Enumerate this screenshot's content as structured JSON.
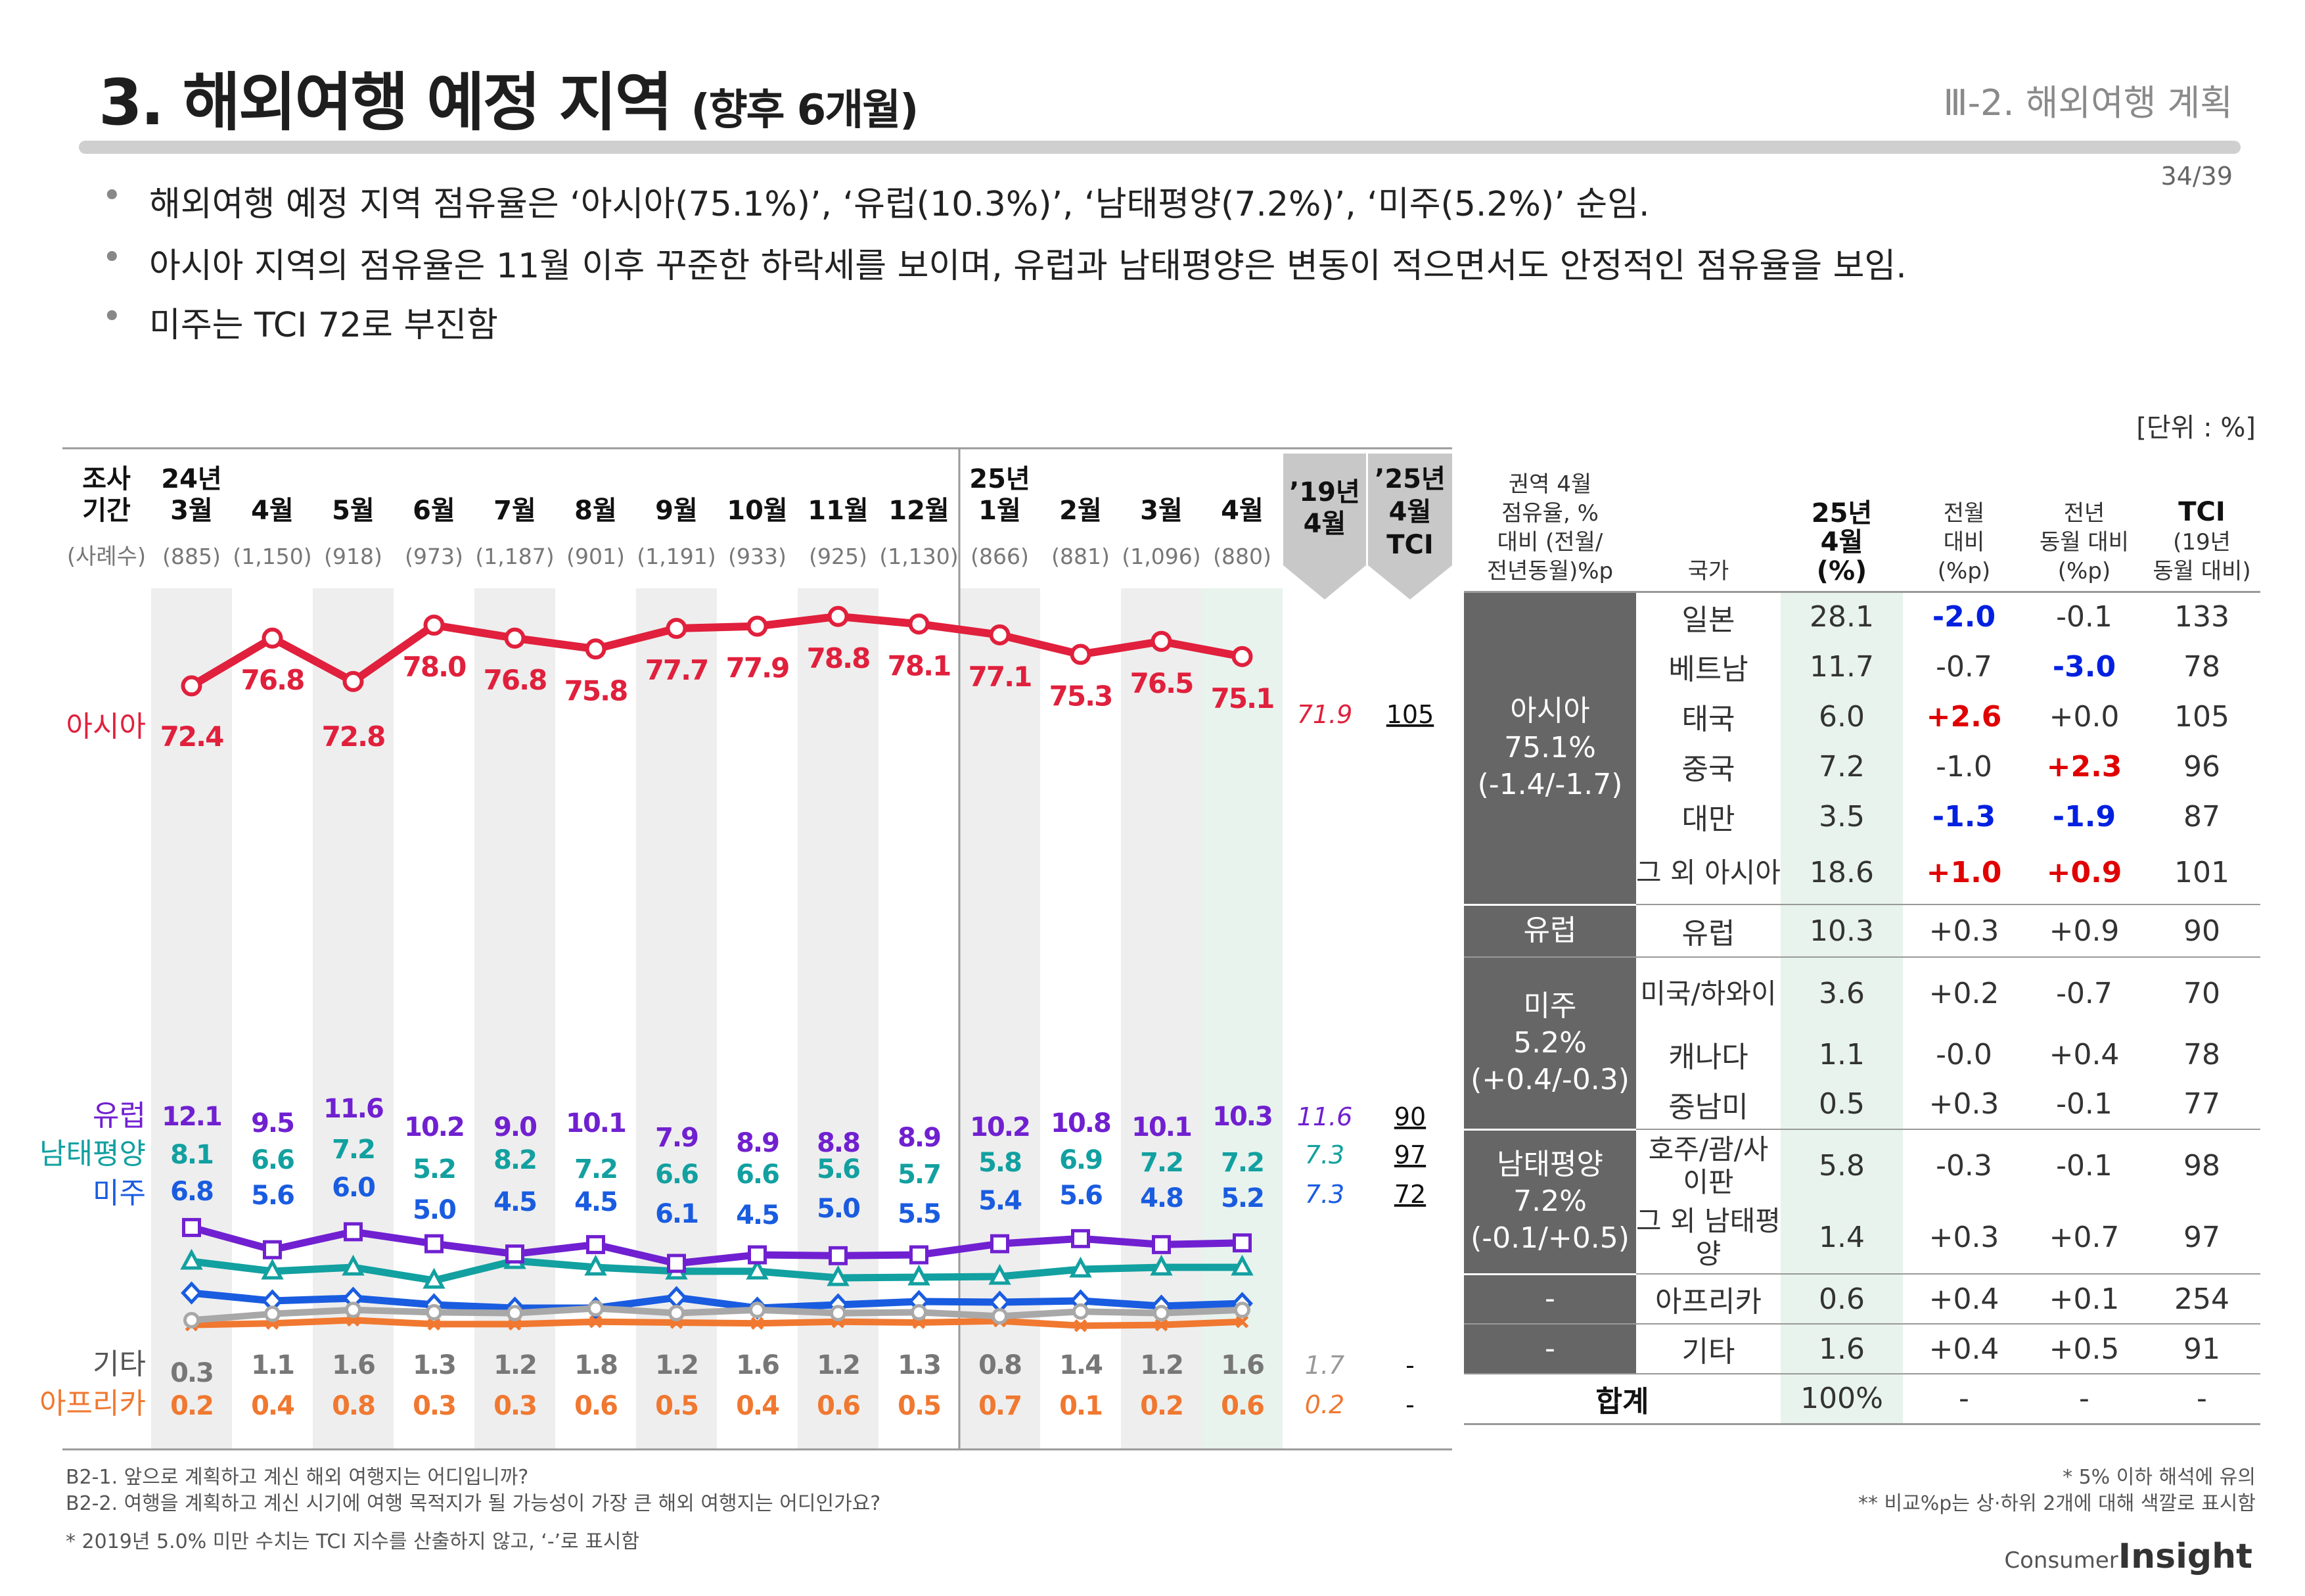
{
  "header": {
    "title": "3. 해외여행 예정 지역",
    "title_sub": "(향후 6개월)",
    "section": "Ⅲ-2. 해외여행 계획",
    "page": "34/39"
  },
  "bullets": [
    "해외여행 예정 지역 점유율은 ‘아시아(75.1%)’, ‘유럽(10.3%)’, ‘남태평양(7.2%)’, ‘미주(5.2%)’ 순임.",
    "아시아 지역의 점유율은 11월 이후 꾸준한 하락세를 보이며, 유럽과 남태평양은 변동이 적으면서도 안정적인 점유율을 보임.",
    "미주는 TCI 72로 부진함"
  ],
  "unit": "[단위 : %]",
  "chart_data": {
    "type": "line",
    "row_label": [
      "조사",
      "기간"
    ],
    "sample_label": "(사례수)",
    "periods": [
      {
        "year": "24년",
        "month": "3월",
        "n": "(885)"
      },
      {
        "year": "",
        "month": "4월",
        "n": "(1,150)"
      },
      {
        "year": "",
        "month": "5월",
        "n": "(918)"
      },
      {
        "year": "",
        "month": "6월",
        "n": "(973)"
      },
      {
        "year": "",
        "month": "7월",
        "n": "(1,187)"
      },
      {
        "year": "",
        "month": "8월",
        "n": "(901)"
      },
      {
        "year": "",
        "month": "9월",
        "n": "(1,191)"
      },
      {
        "year": "",
        "month": "10월",
        "n": "(933)"
      },
      {
        "year": "",
        "month": "11월",
        "n": "(925)"
      },
      {
        "year": "",
        "month": "12월",
        "n": "(1,130)"
      },
      {
        "year": "25년",
        "month": "1월",
        "n": "(866)"
      },
      {
        "year": "",
        "month": "2월",
        "n": "(881)"
      },
      {
        "year": "",
        "month": "3월",
        "n": "(1,096)"
      },
      {
        "year": "",
        "month": "4월",
        "n": "(880)"
      }
    ],
    "ref_col_1": [
      "’19년",
      "4월"
    ],
    "ref_col_2": [
      "’25년",
      "4월",
      "TCI"
    ],
    "series": [
      {
        "name": "아시아",
        "color": "#e0203c",
        "marker": "circle",
        "values": [
          72.4,
          76.8,
          72.8,
          78.0,
          76.8,
          75.8,
          77.7,
          77.9,
          78.8,
          78.1,
          77.1,
          75.3,
          76.5,
          75.1
        ],
        "ref_2019": "71.9",
        "tci": "105"
      },
      {
        "name": "유럽",
        "color": "#7020d0",
        "marker": "square",
        "values": [
          12.1,
          9.5,
          11.6,
          10.2,
          9.0,
          10.1,
          7.9,
          8.9,
          8.8,
          8.9,
          10.2,
          10.8,
          10.1,
          10.3
        ],
        "ref_2019": "11.6",
        "tci": "90"
      },
      {
        "name": "남태평양",
        "color": "#12a0a0",
        "marker": "triangle",
        "values": [
          8.1,
          6.6,
          7.2,
          5.2,
          8.2,
          7.2,
          6.6,
          6.6,
          5.6,
          5.7,
          5.8,
          6.9,
          7.2,
          7.2
        ],
        "ref_2019": "7.3",
        "tci": "97"
      },
      {
        "name": "미주",
        "color": "#1a5ce0",
        "marker": "diamond",
        "values": [
          6.8,
          5.6,
          6.0,
          5.0,
          4.5,
          4.5,
          6.1,
          4.5,
          5.0,
          5.5,
          5.4,
          5.6,
          4.8,
          5.2
        ],
        "ref_2019": "7.3",
        "tci": "72"
      },
      {
        "name": "기타",
        "color": "#a8a8a8",
        "marker": "circle-open",
        "values": [
          0.3,
          1.1,
          1.6,
          1.3,
          1.2,
          1.8,
          1.2,
          1.6,
          1.2,
          1.3,
          0.8,
          1.4,
          1.2,
          1.6
        ],
        "ref_2019": "1.7",
        "tci": "-"
      },
      {
        "name": "아프리카",
        "color": "#f07830",
        "marker": "x",
        "values": [
          0.2,
          0.4,
          0.8,
          0.3,
          0.3,
          0.6,
          0.5,
          0.4,
          0.6,
          0.5,
          0.7,
          0.1,
          0.2,
          0.6
        ],
        "ref_2019": "0.2",
        "tci": "-"
      }
    ]
  },
  "table": {
    "headers": {
      "region": [
        "권역 4월",
        "점유율, %",
        "대비 (전월/",
        "전년동월)%p"
      ],
      "country": "국가",
      "share": [
        "25년",
        "4월",
        "(%)"
      ],
      "mom": [
        "전월",
        "대비",
        "(%p)"
      ],
      "yoy": [
        "전년",
        "동월 대비",
        "(%p)"
      ],
      "tci": [
        "TCI",
        "(19년",
        "동월 대비)"
      ]
    },
    "groups": [
      {
        "region": [
          "아시아",
          "75.1%",
          "(-1.4/-1.7)"
        ],
        "rows": [
          {
            "country": "일본",
            "share": "28.1",
            "mom": "-2.0",
            "mom_hl": "neg",
            "yoy": "-0.1",
            "yoy_hl": "",
            "tci": "133"
          },
          {
            "country": "베트남",
            "share": "11.7",
            "mom": "-0.7",
            "mom_hl": "",
            "yoy": "-3.0",
            "yoy_hl": "neg",
            "tci": "78"
          },
          {
            "country": "태국",
            "share": "6.0",
            "mom": "+2.6",
            "mom_hl": "pos",
            "yoy": "+0.0",
            "yoy_hl": "",
            "tci": "105"
          },
          {
            "country": "중국",
            "share": "7.2",
            "mom": "-1.0",
            "mom_hl": "",
            "yoy": "+2.3",
            "yoy_hl": "pos",
            "tci": "96"
          },
          {
            "country": "대만",
            "share": "3.5",
            "mom": "-1.3",
            "mom_hl": "neg",
            "yoy": "-1.9",
            "yoy_hl": "neg",
            "tci": "87"
          },
          {
            "country": "그 외 아시아",
            "share": "18.6",
            "mom": "+1.0",
            "mom_hl": "pos",
            "yoy": "+0.9",
            "yoy_hl": "pos",
            "tci": "101"
          }
        ]
      },
      {
        "region": [
          "유럽"
        ],
        "rows": [
          {
            "country": "유럽",
            "share": "10.3",
            "mom": "+0.3",
            "mom_hl": "",
            "yoy": "+0.9",
            "yoy_hl": "",
            "tci": "90"
          }
        ]
      },
      {
        "region": [
          "미주",
          "5.2%",
          "(+0.4/-0.3)"
        ],
        "rows": [
          {
            "country": "미국/하와이",
            "share": "3.6",
            "mom": "+0.2",
            "mom_hl": "",
            "yoy": "-0.7",
            "yoy_hl": "",
            "tci": "70"
          },
          {
            "country": "캐나다",
            "share": "1.1",
            "mom": "-0.0",
            "mom_hl": "",
            "yoy": "+0.4",
            "yoy_hl": "",
            "tci": "78"
          },
          {
            "country": "중남미",
            "share": "0.5",
            "mom": "+0.3",
            "mom_hl": "",
            "yoy": "-0.1",
            "yoy_hl": "",
            "tci": "77"
          }
        ]
      },
      {
        "region": [
          "남태평양",
          "7.2%",
          "(-0.1/+0.5)"
        ],
        "rows": [
          {
            "country": "호주/괌/사이판",
            "share": "5.8",
            "mom": "-0.3",
            "mom_hl": "",
            "yoy": "-0.1",
            "yoy_hl": "",
            "tci": "98"
          },
          {
            "country": "그 외 남태평양",
            "share": "1.4",
            "mom": "+0.3",
            "mom_hl": "",
            "yoy": "+0.7",
            "yoy_hl": "",
            "tci": "97"
          }
        ]
      },
      {
        "region": [
          "-"
        ],
        "rows": [
          {
            "country": "아프리카",
            "share": "0.6",
            "mom": "+0.4",
            "mom_hl": "",
            "yoy": "+0.1",
            "yoy_hl": "",
            "tci": "254"
          }
        ]
      },
      {
        "region": [
          "-"
        ],
        "rows": [
          {
            "country": "기타",
            "share": "1.6",
            "mom": "+0.4",
            "mom_hl": "",
            "yoy": "+0.5",
            "yoy_hl": "",
            "tci": "91"
          }
        ]
      }
    ],
    "total": {
      "label": "합계",
      "share": "100%",
      "mom": "-",
      "yoy": "-",
      "tci": "-"
    }
  },
  "footnotes": {
    "left": [
      "B2-1. 앞으로 계획하고 계신 해외 여행지는 어디입니까?",
      "B2-2. 여행을 계획하고 계신 시기에 여행 목적지가 될 가능성이 가장 큰 해외 여행지는 어디인가요?",
      "* 2019년 5.0% 미만 수치는 TCI 지수를 산출하지 않고, ‘-’로 표시함"
    ],
    "right": [
      "* 5% 이하 해석에 유의",
      "** 비교%p는 상·하위 2개에 대해 색깔로 표시함"
    ]
  },
  "logo": {
    "part1": "Consumer",
    "part2": "Insight"
  }
}
